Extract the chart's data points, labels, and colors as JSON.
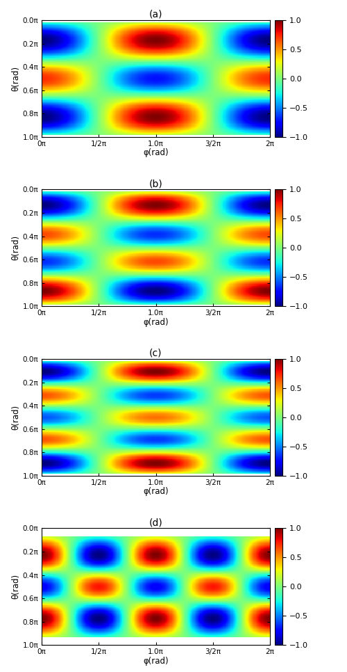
{
  "title_a": "(a)",
  "title_b": "(b)",
  "title_c": "(c)",
  "title_d": "(d)",
  "xlabel": "φ(rad)",
  "ylabel": "θ(rad)",
  "xlim": [
    0,
    6.283185307
  ],
  "ylim": [
    0,
    3.141592654
  ],
  "xtick_vals": [
    0,
    1.5707963,
    3.1415927,
    4.712389,
    6.2831853
  ],
  "xtick_labels": [
    "0π",
    "1/2π",
    "1.0π",
    "3/2π",
    "2π"
  ],
  "ytick_vals": [
    0,
    0.6283185,
    1.2566371,
    1.8849556,
    2.5132741,
    3.1415927
  ],
  "ytick_labels": [
    "0.0π",
    "0.2π",
    "0.4π",
    "0.6π",
    "0.8π",
    "1.0π"
  ],
  "cbar_ticks": [
    -1,
    -0.5,
    0,
    0.5,
    1
  ],
  "figsize": [
    5.0,
    9.66
  ],
  "dpi": 100,
  "harmonics": [
    [
      3,
      1
    ],
    [
      4,
      1
    ],
    [
      5,
      1
    ],
    [
      4,
      2
    ]
  ]
}
